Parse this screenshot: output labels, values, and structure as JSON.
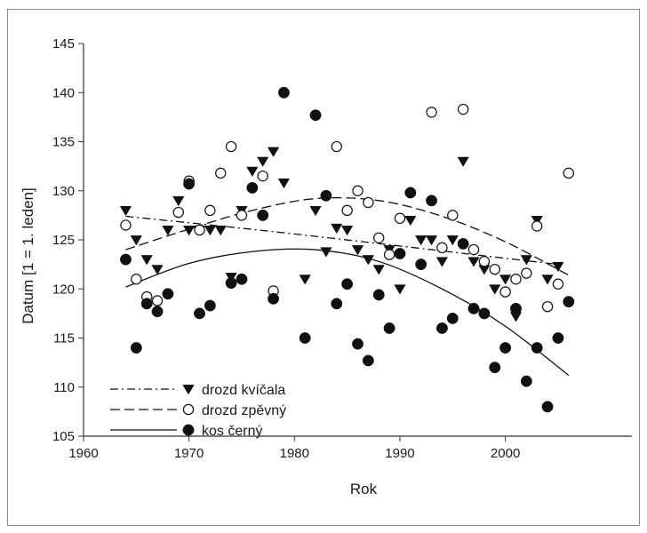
{
  "chart_data": {
    "type": "scatter",
    "xlabel": "Rok",
    "ylabel": "Datum [1 = 1. leden]",
    "xlim": [
      1960,
      2012
    ],
    "ylim": [
      105,
      145
    ],
    "xticks": [
      1960,
      1970,
      1980,
      1990,
      2000
    ],
    "yticks": [
      105,
      110,
      115,
      120,
      125,
      130,
      135,
      140,
      145
    ],
    "grid": false,
    "legend_position": "bottom-left",
    "series": [
      {
        "name": "drozd kvíčala",
        "marker": "triangle-down",
        "line_style": "dash-dot",
        "color": "#111111",
        "trend": {
          "x": [
            1964,
            1980,
            2005
          ],
          "y": [
            127.4,
            125.6,
            122.5
          ]
        },
        "points": [
          [
            1964,
            128
          ],
          [
            1965,
            125
          ],
          [
            1966,
            123
          ],
          [
            1967,
            122
          ],
          [
            1968,
            126
          ],
          [
            1969,
            129
          ],
          [
            1970,
            126
          ],
          [
            1971,
            126
          ],
          [
            1972,
            126
          ],
          [
            1973,
            126
          ],
          [
            1974,
            121.2
          ],
          [
            1975,
            128
          ],
          [
            1976,
            132
          ],
          [
            1977,
            133
          ],
          [
            1978,
            134
          ],
          [
            1979,
            130.8
          ],
          [
            1982,
            128
          ],
          [
            1983,
            123.8
          ],
          [
            1984,
            126.2
          ],
          [
            1985,
            126
          ],
          [
            1986,
            124
          ],
          [
            1987,
            123
          ],
          [
            1988,
            122
          ],
          [
            1989,
            124
          ],
          [
            1990,
            120
          ],
          [
            1991,
            127
          ],
          [
            1992,
            125
          ],
          [
            1993,
            125
          ],
          [
            1994,
            122.8
          ],
          [
            1995,
            125
          ],
          [
            1996,
            133
          ],
          [
            1997,
            122.8
          ],
          [
            1998,
            122
          ],
          [
            1999,
            120
          ],
          [
            2000,
            121
          ],
          [
            2001,
            117.2
          ],
          [
            2002,
            123
          ],
          [
            2003,
            127
          ],
          [
            2004,
            121
          ],
          [
            2005,
            122.3
          ],
          [
            1981,
            121
          ]
        ]
      },
      {
        "name": "drozd zpěvný",
        "marker": "circle-open",
        "line_style": "dashed",
        "color": "#111111",
        "trend": {
          "x": [
            1964,
            1970,
            1976,
            1982,
            1988,
            1994,
            2000,
            2006
          ],
          "y": [
            124.0,
            126.1,
            128.0,
            129.2,
            129.0,
            127.4,
            124.8,
            121.4
          ]
        },
        "points": [
          [
            1964,
            126.5
          ],
          [
            1965,
            121
          ],
          [
            1966,
            119.2
          ],
          [
            1967,
            118.8
          ],
          [
            1969,
            127.8
          ],
          [
            1970,
            131
          ],
          [
            1971,
            126
          ],
          [
            1972,
            128
          ],
          [
            1973,
            131.8
          ],
          [
            1974,
            134.5
          ],
          [
            1975,
            127.5
          ],
          [
            1977,
            131.5
          ],
          [
            1978,
            119.8
          ],
          [
            1984,
            134.5
          ],
          [
            1985,
            128
          ],
          [
            1986,
            130
          ],
          [
            1987,
            128.8
          ],
          [
            1988,
            125.2
          ],
          [
            1989,
            123.5
          ],
          [
            1990,
            127.2
          ],
          [
            1993,
            138
          ],
          [
            1994,
            124.2
          ],
          [
            1995,
            127.5
          ],
          [
            1996,
            138.3
          ],
          [
            1997,
            124
          ],
          [
            1998,
            122.8
          ],
          [
            1999,
            122
          ],
          [
            2000,
            119.7
          ],
          [
            2001,
            121
          ],
          [
            2002,
            121.6
          ],
          [
            2003,
            126.4
          ],
          [
            2004,
            118.2
          ],
          [
            2005,
            120.5
          ],
          [
            2006,
            131.8
          ]
        ]
      },
      {
        "name": "kos černý",
        "marker": "circle-filled",
        "line_style": "solid",
        "color": "#111111",
        "trend": {
          "x": [
            1964,
            1970,
            1976,
            1982,
            1988,
            1994,
            2000,
            2006
          ],
          "y": [
            120.2,
            122.6,
            123.8,
            124.0,
            122.8,
            120.0,
            116.2,
            111.2
          ]
        },
        "points": [
          [
            1964,
            123
          ],
          [
            1965,
            114
          ],
          [
            1966,
            118.5
          ],
          [
            1967,
            117.7
          ],
          [
            1968,
            119.5
          ],
          [
            1970,
            130.7
          ],
          [
            1971,
            117.5
          ],
          [
            1972,
            118.3
          ],
          [
            1974,
            120.6
          ],
          [
            1975,
            121
          ],
          [
            1976,
            130.3
          ],
          [
            1977,
            127.5
          ],
          [
            1978,
            119
          ],
          [
            1979,
            140
          ],
          [
            1981,
            115
          ],
          [
            1982,
            137.7
          ],
          [
            1983,
            129.5
          ],
          [
            1984,
            118.5
          ],
          [
            1985,
            120.5
          ],
          [
            1986,
            114.4
          ],
          [
            1987,
            112.7
          ],
          [
            1988,
            119.4
          ],
          [
            1989,
            116
          ],
          [
            1990,
            123.6
          ],
          [
            1991,
            129.8
          ],
          [
            1992,
            122.5
          ],
          [
            1993,
            129
          ],
          [
            1994,
            116
          ],
          [
            1995,
            117
          ],
          [
            1996,
            124.6
          ],
          [
            1997,
            118
          ],
          [
            1998,
            117.5
          ],
          [
            1999,
            112
          ],
          [
            2000,
            114
          ],
          [
            2001,
            118
          ],
          [
            2002,
            110.6
          ],
          [
            2003,
            114
          ],
          [
            2004,
            108
          ],
          [
            2005,
            115
          ],
          [
            2006,
            118.7
          ]
        ]
      }
    ]
  }
}
